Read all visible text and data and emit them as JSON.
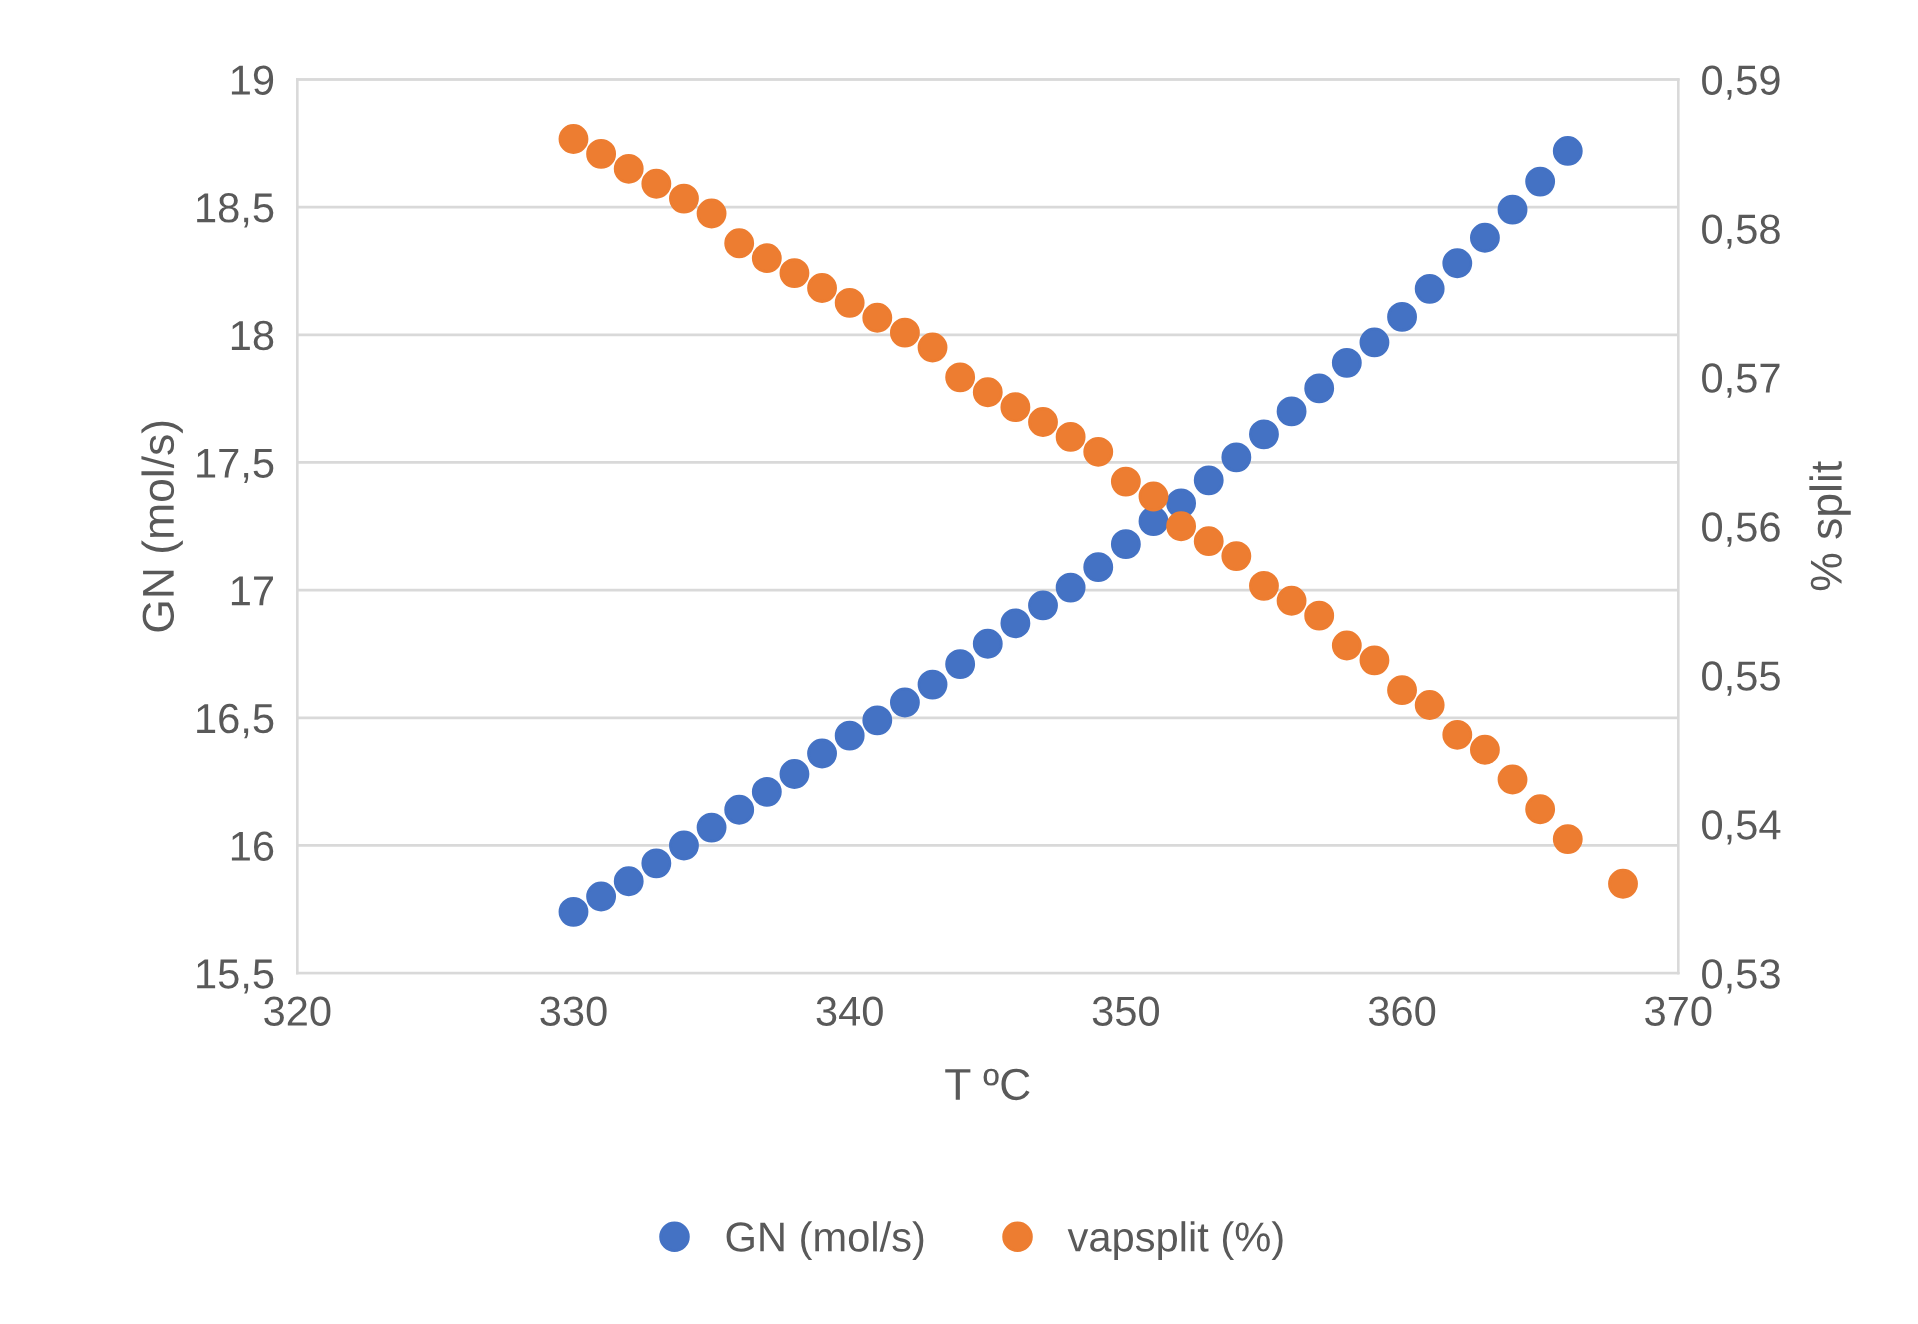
{
  "chart_data": {
    "type": "scatter",
    "xlabel": "T ºC",
    "ylabel": "GN (mol/s)",
    "y2label": "% split",
    "xlim": [
      320,
      370
    ],
    "xticks": [
      320,
      330,
      340,
      350,
      360,
      370
    ],
    "ylim": [
      15.5,
      19
    ],
    "yticks": [
      {
        "value": 15.5,
        "label": "15,5"
      },
      16,
      {
        "value": 16.5,
        "label": "16,5"
      },
      17,
      {
        "value": 17.5,
        "label": "17,5"
      },
      18,
      {
        "value": 18.5,
        "label": "18,5"
      },
      19
    ],
    "y2lim": [
      0.53,
      0.59
    ],
    "y2ticks": [
      {
        "value": 0.53,
        "label": "0,53"
      },
      {
        "value": 0.54,
        "label": "0,54"
      },
      {
        "value": 0.55,
        "label": "0,55"
      },
      {
        "value": 0.56,
        "label": "0,56"
      },
      {
        "value": 0.57,
        "label": "0,57"
      },
      {
        "value": 0.58,
        "label": "0,58"
      },
      {
        "value": 0.59,
        "label": "0,59"
      }
    ],
    "grid": "y",
    "legend": "bottom",
    "marker": "circle",
    "series": [
      {
        "name": "GN (mol/s)",
        "color": "#4472c4",
        "x": [
          330,
          331,
          332,
          333,
          334,
          335,
          336,
          337,
          338,
          339,
          340,
          341,
          342,
          343,
          344,
          345,
          346,
          347,
          348,
          349,
          350,
          351,
          352,
          353,
          354,
          355,
          356,
          357,
          358,
          359,
          360,
          361,
          362,
          363,
          364,
          365,
          366
        ],
        "values": [
          15.74,
          15.8,
          15.86,
          15.93,
          16.0,
          16.07,
          16.14,
          16.21,
          16.28,
          16.36,
          16.43,
          16.49,
          16.56,
          16.63,
          16.71,
          16.79,
          16.87,
          16.94,
          17.01,
          17.09,
          17.18,
          17.27,
          17.34,
          17.43,
          17.52,
          17.61,
          17.7,
          17.79,
          17.89,
          17.97,
          18.07,
          18.18,
          18.28,
          18.38,
          18.49,
          18.6,
          18.72
        ]
      },
      {
        "name": "vapsplit (%)",
        "color": "#ed7d31",
        "axis": "y2",
        "x": [
          330,
          331,
          332,
          333,
          334,
          335,
          336,
          337,
          338,
          339,
          340,
          341,
          342,
          343,
          344,
          345,
          346,
          347,
          348,
          349,
          350,
          351,
          352,
          353,
          354,
          355,
          356,
          357,
          358,
          359,
          360,
          361,
          362,
          363,
          364,
          365,
          366,
          368
        ],
        "values": [
          0.586,
          0.585,
          0.584,
          0.583,
          0.582,
          0.581,
          0.579,
          0.578,
          0.577,
          0.576,
          0.575,
          0.574,
          0.573,
          0.572,
          0.57,
          0.569,
          0.568,
          0.567,
          0.566,
          0.565,
          0.563,
          0.562,
          0.56,
          0.559,
          0.558,
          0.556,
          0.555,
          0.554,
          0.552,
          0.551,
          0.549,
          0.548,
          0.546,
          0.545,
          0.543,
          0.541,
          0.539,
          0.536
        ]
      }
    ]
  }
}
